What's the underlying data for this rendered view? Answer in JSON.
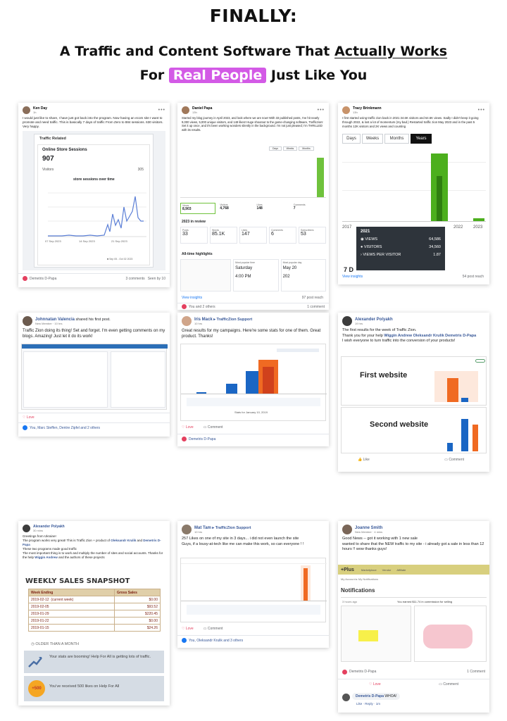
{
  "headline": {
    "line1": "FINALLY:",
    "line2_pre": "A Traffic and Content Software That ",
    "line2_u": "Actually Works",
    "line3_pre": "For ",
    "line3_pill": "Real People",
    "line3_post": " Just Like You"
  },
  "colors": {
    "accent_pill": "#d35ae6",
    "facebook_blue": "#385898",
    "chart_green": "#4caf1d",
    "chart_orange": "#f06a22",
    "chart_blue": "#1a66c4"
  },
  "card1": {
    "name": "Ken Day",
    "time": "1h",
    "text": "I would just like to share, I have just got back into the program. Now having an ecom site I want to promote and need traffic. This is basically 7 days of traffic From Zero to 884 sessions. 630 visitors. Very happy.",
    "panel_title": "Traffic Related",
    "sessions_label": "Online Store Sessions",
    "sessions_value": "907",
    "visitors_label": "Visitors",
    "visitors_value": "305",
    "chart_title": "store sessions over time",
    "x_ticks": [
      "07 Sep 2023",
      "14 Sep 2023",
      "21 Sep 2023"
    ],
    "legend": "Sep 05 - Oct 02 2023",
    "footer_name": "Demetris D-Papa",
    "comments": "3 comments",
    "seen": "Seen by 10"
  },
  "card2": {
    "name": "Daniel Papa",
    "time": "13h",
    "text": "Started my blog journey in April 2023, and look where we are now! With 33 published posts, I've hit nearly 9,000 views, 5,000 unique visitors, and 148 likes! Huge shoutout to the game-changing software, Trafficzion! Set it up once, and it's been working wonders silently in the background. I'm not just pleased; I'm THRILLED with its results.",
    "tabs": [
      "Days",
      "Weeks",
      "Months"
    ],
    "stats": [
      {
        "label": "Views",
        "value": "8,903"
      },
      {
        "label": "Visitors",
        "value": "4,768"
      },
      {
        "label": "Likes",
        "value": "148"
      },
      {
        "label": "Comments",
        "value": "7"
      }
    ],
    "review_title": "2023 in review",
    "review": [
      {
        "label": "Posts",
        "value": "33"
      },
      {
        "label": "Words",
        "value": "85.1K"
      },
      {
        "label": "Likes",
        "value": "147"
      },
      {
        "label": "Comments",
        "value": "6"
      },
      {
        "label": "Subscribers",
        "value": "53"
      }
    ],
    "highlights_title": "All-time highlights",
    "popular_time_label": "Most popular time",
    "popular_day_value": "Saturday",
    "popular_hour": "4:00 PM",
    "popular_day_label": "Most popular day",
    "popular_date": "May 20",
    "popular_views": "202",
    "insights_link": "View insights",
    "post_reach": "97 post reach",
    "footer_react": "You and 2 others",
    "footer_comments": "1 comment"
  },
  "card3": {
    "name": "Tracy Brinkmann",
    "time": "13h",
    "text": "I first started using traffic zion back in 2021 34.6K visitors and 64.6K views. Sadly I didn't keep it going through 2022, & lost a lot of momentum (my bad.) Restarted traffic zion May 2023 and in the past 5 months 12K visitors and 2K views and counting",
    "tabs": [
      "Days",
      "Weeks",
      "Months",
      "Years"
    ],
    "years": [
      "2017",
      "2022",
      "2023"
    ],
    "tooltip_year": "2021",
    "tooltip": [
      {
        "label": "VIEWS",
        "value": "64,586"
      },
      {
        "label": "VISITORS",
        "value": "34,560"
      },
      {
        "label": "VIEWS PER VISITOR",
        "value": "1.87"
      }
    ],
    "partial": "7 D",
    "insights_link": "View insights",
    "post_reach": "54 post reach"
  },
  "card4": {
    "name": "Johnnatan Valencia",
    "action": " shared his first post.",
    "badge": "New Member",
    "time": "10 hrs",
    "text": "Traffic Zion doing its thing! Set and forget. I'm even getting comments on my blogs. Amazing! Just let it do its work!",
    "love": "Love",
    "footer": "You, Marc Steffen, Dentre Zipfel and 2 others"
  },
  "card5": {
    "name": "Iris Mack",
    "group": " ▸ TrafficZion Support",
    "time": "10 hrs",
    "text": "Great results for my campaigns. Here're some stats for one of them. Great product. Thanks!",
    "date": "Stats for January 10, 2019",
    "love": "Love",
    "comment": "Comment",
    "footer": "Demetris D-Papa"
  },
  "card6": {
    "name": "Alexander Polyakh",
    "time": "19 hrs",
    "line1": "The first results for the week of Traffic Zion.",
    "line2_pre": "Thank you for your help ",
    "tagged": "Wiggin Andrew Oleksandr Krulik Demetris D-Papa",
    "line3": "I wish everyone to turn traffic into the conversion of your products!",
    "first": "First website",
    "second": "Second website",
    "like": "Like",
    "comment": "Comment"
  },
  "card7": {
    "name": "Alexander Polyakh",
    "time": "30 mins",
    "line1": "Greetings from Ukraine!",
    "line2_pre": "The program works very great! This is Traffic Zion + product of ",
    "tag1": "Oleksandr Krulik",
    "and": " and ",
    "tag2": "Demetris D-Papa",
    "line3": "These two programs made good traffic",
    "line4_pre": "The most important thing is to work and multiply the number of sites and social accounts. Thanks for the help ",
    "tag3": "Wiggin Andrew",
    "line4_post": " and the authors of these projects",
    "snapshot": "WEEKLY SALES SNAPSHOT",
    "col1": "Week Ending",
    "col2": "Gross Sales",
    "rows": [
      {
        "week": "2019-02-12",
        "note": "(current week)",
        "sales": "$0.00"
      },
      {
        "week": "2019-02-05",
        "note": "",
        "sales": "$93.52"
      },
      {
        "week": "2019-01-29",
        "note": "",
        "sales": "$220.45"
      },
      {
        "week": "2019-01-22",
        "note": "",
        "sales": "$0.00"
      },
      {
        "week": "2019-01-15",
        "note": "",
        "sales": "$24.26"
      }
    ],
    "older": "OLDER THAN A MONTH",
    "notif1": "Your stats are booming! Help For All is getting lots of traffic.",
    "notif2": "You've received 500 likes on Help For All",
    "badge500": "+500"
  },
  "card8": {
    "name": "Mat Tam",
    "group": " ▸ TrafficZion Support",
    "time": "10 hrs",
    "text1": "257 Likes on one of my site in 3 days... i did not even launch the site",
    "text2": "Guys, if a lousy-at-tech like me can make this work, so can everyone ! !",
    "love": "Love",
    "comment": "Comment",
    "footer": "You, Oleksandr Krulik and 3 others"
  },
  "card9": {
    "name": "Joanne Smith",
    "badge": "New Member",
    "time": "4 mins",
    "line1": "Good News -- got it working with 1 new sale",
    "line2": "wanted to share that the NEW traffic to my site - i already got a sale in less than 12 hours !! wow thanks guys!",
    "plus": "+Plus",
    "nav": [
      "Marketplace",
      "Vendor",
      "Affiliate"
    ],
    "crumb": "My Account  ▸  My Notifications",
    "notif_title": "Notifications",
    "ago": "3 hours ago",
    "earned": "You earned $11.74 in commission for selling",
    "footer_name": "Demetris D-Papa",
    "footer_comment": "1 Comment",
    "love": "Love",
    "comment": "Comment",
    "reply_name": "Demetris D-Papa",
    "reply_text": " WHOA!",
    "reply_actions": "Like · Reply · 1m"
  }
}
